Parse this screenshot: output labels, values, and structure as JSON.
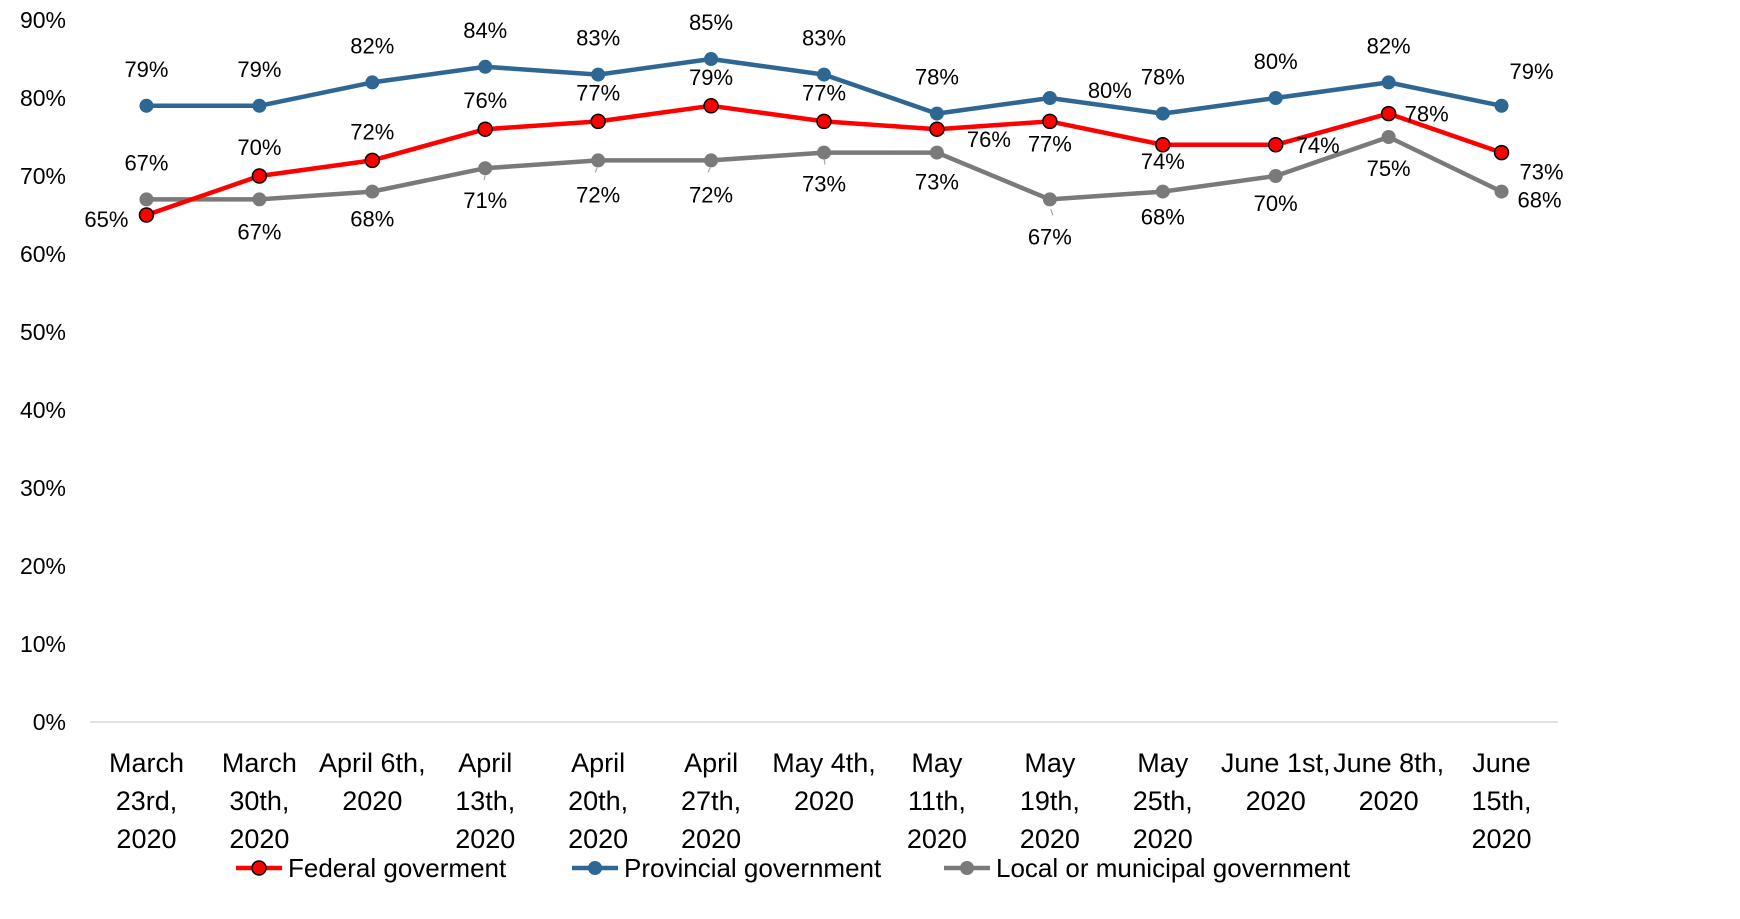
{
  "chart_data": {
    "type": "line",
    "categories": [
      [
        "March",
        "23rd,",
        "2020"
      ],
      [
        "March",
        "30th,",
        "2020"
      ],
      [
        "April 6th,",
        "2020"
      ],
      [
        "April",
        "13th,",
        "2020"
      ],
      [
        "April",
        "20th,",
        "2020"
      ],
      [
        "April",
        "27th,",
        "2020"
      ],
      [
        "May 4th,",
        "2020"
      ],
      [
        "May",
        "11th,",
        "2020"
      ],
      [
        "May",
        "19th,",
        "2020"
      ],
      [
        "May",
        "25th,",
        "2020"
      ],
      [
        "June 1st,",
        "2020"
      ],
      [
        "June 8th,",
        "2020"
      ],
      [
        "June",
        "15th,",
        "2020"
      ]
    ],
    "series": [
      {
        "name": "Federal goverment",
        "color": "#ff0000",
        "marker_color": "#ff0000",
        "marker_edge": "#000000",
        "values": [
          65,
          70,
          72,
          76,
          77,
          79,
          77,
          76,
          77,
          74,
          74,
          78,
          73
        ],
        "labels": [
          "65%",
          "70%",
          "72%",
          "76%",
          "77%",
          "79%",
          "77%",
          "76%",
          "77%",
          "74%",
          "74%",
          "78%",
          "73%"
        ]
      },
      {
        "name": "Provincial government",
        "color": "#2e6694",
        "marker_color": "#2e6694",
        "marker_edge": "#2e6694",
        "values": [
          79,
          79,
          82,
          84,
          83,
          85,
          83,
          78,
          80,
          78,
          80,
          82,
          79
        ],
        "labels": [
          "79%",
          "79%",
          "82%",
          "84%",
          "83%",
          "85%",
          "83%",
          "78%",
          "80%",
          "78%",
          "80%",
          "82%",
          "79%"
        ]
      },
      {
        "name": "Local or municipal government",
        "color": "#7a7a7a",
        "marker_color": "#7a7a7a",
        "marker_edge": "#7a7a7a",
        "values": [
          67,
          67,
          68,
          71,
          72,
          72,
          73,
          73,
          67,
          68,
          70,
          75,
          68
        ],
        "labels": [
          "67%",
          "67%",
          "68%",
          "71%",
          "72%",
          "72%",
          "73%",
          "73%",
          "67%",
          "68%",
          "70%",
          "75%",
          "68%"
        ]
      }
    ],
    "yticks": [
      "0%",
      "10%",
      "20%",
      "30%",
      "40%",
      "50%",
      "60%",
      "70%",
      "80%",
      "90%"
    ],
    "ylim": [
      0,
      90
    ],
    "grid": false,
    "legend_position": "bottom"
  }
}
